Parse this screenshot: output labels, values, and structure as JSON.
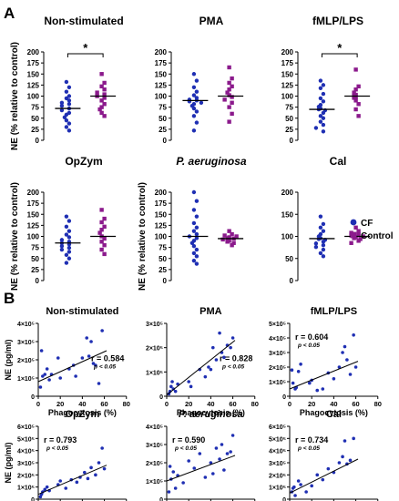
{
  "panel_labels": [
    "A",
    "B"
  ],
  "colors": {
    "cf": "#1f2fb3",
    "control": "#8b1a8c",
    "axis": "#000000",
    "line": "#000000"
  },
  "legend": {
    "cf": "CF",
    "control": "Control"
  },
  "chart_data": [
    {
      "type": "scatter",
      "panel": "A",
      "title": "Non-stimulated",
      "italic": false,
      "ylabel": "NE (% relative to control)",
      "ylim": [
        0,
        200
      ],
      "yticks": [
        "0",
        "25",
        "50",
        "75",
        "100",
        "125",
        "150",
        "175",
        "200"
      ],
      "significance": "*",
      "series": [
        {
          "name": "CF",
          "mean": 72,
          "values": [
            132,
            120,
            110,
            100,
            95,
            90,
            85,
            82,
            78,
            72,
            68,
            62,
            58,
            52,
            45,
            38,
            30,
            22
          ]
        },
        {
          "name": "Control",
          "mean": 100,
          "values": [
            150,
            130,
            122,
            115,
            108,
            104,
            100,
            96,
            90,
            82,
            75,
            70,
            62,
            55
          ]
        }
      ]
    },
    {
      "type": "scatter",
      "panel": "A",
      "title": "PMA",
      "italic": false,
      "ylabel": "",
      "ylim": [
        0,
        200
      ],
      "yticks": [
        "0",
        "25",
        "50",
        "75",
        "100",
        "125",
        "150",
        "175",
        "200"
      ],
      "significance": "",
      "series": [
        {
          "name": "CF",
          "mean": 90,
          "values": [
            150,
            135,
            120,
            110,
            102,
            96,
            92,
            90,
            88,
            85,
            82,
            78,
            72,
            65,
            55,
            40,
            22
          ]
        },
        {
          "name": "Control",
          "mean": 100,
          "values": [
            165,
            140,
            130,
            122,
            115,
            108,
            102,
            98,
            92,
            85,
            75,
            60,
            42
          ]
        }
      ]
    },
    {
      "type": "scatter",
      "panel": "A",
      "title": "fMLP/LPS",
      "italic": false,
      "ylabel": "",
      "ylim": [
        0,
        200
      ],
      "yticks": [
        "0",
        "25",
        "50",
        "75",
        "100",
        "125",
        "150",
        "175",
        "200"
      ],
      "significance": "*",
      "series": [
        {
          "name": "CF",
          "mean": 70,
          "values": [
            135,
            125,
            118,
            105,
            95,
            88,
            80,
            76,
            72,
            70,
            68,
            62,
            55,
            50,
            42,
            35,
            28,
            20
          ]
        },
        {
          "name": "Control",
          "mean": 100,
          "values": [
            160,
            122,
            115,
            108,
            103,
            100,
            98,
            96,
            90,
            82,
            70,
            55
          ]
        }
      ]
    },
    {
      "type": "scatter",
      "panel": "A",
      "title": "OpZym",
      "italic": false,
      "ylabel": "NE (% relative to control)",
      "ylim": [
        0,
        200
      ],
      "yticks": [
        "0",
        "25",
        "50",
        "75",
        "100",
        "125",
        "150",
        "175",
        "200"
      ],
      "significance": "",
      "series": [
        {
          "name": "CF",
          "mean": 85,
          "values": [
            145,
            135,
            122,
            112,
            104,
            98,
            92,
            88,
            85,
            82,
            78,
            74,
            70,
            65,
            58,
            50,
            40
          ]
        },
        {
          "name": "Control",
          "mean": 100,
          "values": [
            160,
            140,
            132,
            122,
            115,
            108,
            100,
            95,
            88,
            80,
            70,
            60
          ]
        }
      ]
    },
    {
      "type": "scatter",
      "panel": "A",
      "title": "P. aeruginosa",
      "italic": true,
      "ylabel": "NE (% relative to control)",
      "ylim": [
        0,
        200
      ],
      "yticks": [
        "0",
        "25",
        "50",
        "75",
        "100",
        "125",
        "150",
        "175",
        "200"
      ],
      "significance": "",
      "series": [
        {
          "name": "CF",
          "mean": 100,
          "values": [
            200,
            180,
            160,
            145,
            130,
            120,
            112,
            105,
            100,
            96,
            90,
            85,
            78,
            70,
            62,
            55,
            45,
            38
          ]
        },
        {
          "name": "Control",
          "mean": 95,
          "values": [
            112,
            105,
            102,
            100,
            98,
            96,
            95,
            93,
            90,
            88,
            85,
            80
          ]
        }
      ]
    },
    {
      "type": "scatter",
      "panel": "A",
      "title": "Cal",
      "italic": false,
      "ylabel": "",
      "ylim": [
        0,
        200
      ],
      "yticks": [
        "0",
        "50",
        "100",
        "150",
        "200"
      ],
      "significance": "",
      "series": [
        {
          "name": "CF",
          "mean": 95,
          "values": [
            145,
            128,
            120,
            112,
            105,
            100,
            96,
            94,
            92,
            88,
            84,
            80,
            76,
            70,
            62,
            55
          ]
        },
        {
          "name": "Control",
          "mean": 100,
          "values": [
            120,
            112,
            108,
            104,
            102,
            100,
            98,
            96,
            94,
            90,
            85
          ]
        }
      ]
    },
    {
      "type": "scatter",
      "panel": "B",
      "title": "Non-stimulated",
      "italic": false,
      "xlabel": "Phagocytosis (%)",
      "ylabel": "NE (pg/ml)",
      "xlim": [
        0,
        80
      ],
      "ylim": [
        0,
        400000
      ],
      "xticks": [
        "0",
        "20",
        "40",
        "60",
        "80"
      ],
      "yticks": [
        "0",
        "1×10⁵",
        "2×10⁵",
        "3×10⁵",
        "4×10⁵"
      ],
      "r": "r = 0.584",
      "p": "p < 0.05",
      "fit": {
        "x": [
          0,
          62
        ],
        "y": [
          80000,
          250000
        ]
      },
      "x": [
        2,
        3,
        4,
        6,
        8,
        10,
        12,
        18,
        20,
        28,
        32,
        34,
        40,
        44,
        46,
        48,
        50,
        52,
        55,
        58
      ],
      "y": [
        50000,
        250000,
        110000,
        120000,
        150000,
        90000,
        120000,
        210000,
        100000,
        150000,
        170000,
        110000,
        210000,
        320000,
        220000,
        300000,
        180000,
        170000,
        70000,
        360000
      ]
    },
    {
      "type": "scatter",
      "panel": "B",
      "title": "PMA",
      "italic": false,
      "xlabel": "Phagocytosis (%)",
      "ylabel": "",
      "xlim": [
        0,
        80
      ],
      "ylim": [
        0,
        300000
      ],
      "xticks": [
        "0",
        "20",
        "40",
        "60",
        "80"
      ],
      "yticks": [
        "0",
        "1×10⁵",
        "2×10⁵",
        "3×10⁵"
      ],
      "r": "r = 0.828",
      "p": "p < 0.05",
      "fit": {
        "x": [
          0,
          62
        ],
        "y": [
          5000,
          230000
        ]
      },
      "x": [
        2,
        3,
        4,
        5,
        6,
        8,
        10,
        20,
        22,
        30,
        35,
        38,
        40,
        42,
        45,
        48,
        50,
        52,
        55,
        58,
        60
      ],
      "y": [
        10000,
        20000,
        40000,
        60000,
        30000,
        20000,
        50000,
        60000,
        40000,
        110000,
        80000,
        120000,
        110000,
        200000,
        150000,
        260000,
        180000,
        160000,
        210000,
        200000,
        240000
      ]
    },
    {
      "type": "scatter",
      "panel": "B",
      "title": "fMLP/LPS",
      "italic": false,
      "xlabel": "Phagocytosis (%)",
      "ylabel": "",
      "xlim": [
        0,
        80
      ],
      "ylim": [
        0,
        500000
      ],
      "xticks": [
        "0",
        "20",
        "40",
        "60",
        "80"
      ],
      "yticks": [
        "0",
        "1×10⁵",
        "2×10⁵",
        "3×10⁵",
        "4×10⁵",
        "5×10⁵"
      ],
      "r": "r = 0.604",
      "p": "p < 0.05",
      "fit": {
        "x": [
          0,
          62
        ],
        "y": [
          50000,
          240000
        ]
      },
      "x": [
        2,
        3,
        5,
        6,
        8,
        10,
        18,
        20,
        25,
        30,
        35,
        40,
        45,
        48,
        50,
        52,
        55,
        58,
        60
      ],
      "y": [
        180000,
        90000,
        50000,
        60000,
        170000,
        220000,
        90000,
        110000,
        40000,
        50000,
        160000,
        120000,
        200000,
        300000,
        340000,
        250000,
        150000,
        420000,
        200000
      ]
    },
    {
      "type": "scatter",
      "panel": "B",
      "title": "OpZym",
      "italic": false,
      "xlabel": "Phagocytosis (%)",
      "ylabel": "NE (pg/ml)",
      "xlim": [
        0,
        80
      ],
      "ylim": [
        0,
        600000
      ],
      "xticks": [
        "0",
        "20",
        "40",
        "60",
        "80"
      ],
      "yticks": [
        "0",
        "1×10⁵",
        "2×10⁵",
        "3×10⁵",
        "4×10⁵",
        "5×10⁵",
        "6×10⁵"
      ],
      "r": "r = 0.793",
      "p": "p < 0.05",
      "fit": {
        "x": [
          0,
          62
        ],
        "y": [
          40000,
          280000
        ]
      },
      "x": [
        2,
        3,
        4,
        6,
        8,
        10,
        18,
        20,
        25,
        30,
        35,
        38,
        42,
        45,
        48,
        52,
        55,
        58,
        60
      ],
      "y": [
        20000,
        40000,
        60000,
        80000,
        100000,
        70000,
        120000,
        150000,
        90000,
        160000,
        140000,
        180000,
        220000,
        170000,
        260000,
        200000,
        300000,
        420000,
        250000
      ]
    },
    {
      "type": "scatter",
      "panel": "B",
      "title": "P. aeruginosa",
      "italic": true,
      "xlabel": "Phagocytosis (%)",
      "ylabel": "",
      "xlim": [
        0,
        80
      ],
      "ylim": [
        0,
        400000
      ],
      "xticks": [
        "0",
        "20",
        "40",
        "60",
        "80"
      ],
      "yticks": [
        "0",
        "1×10⁵",
        "2×10⁵",
        "3×10⁵",
        "4×10⁵"
      ],
      "r": "r = 0.590",
      "p": "p < 0.05",
      "fit": {
        "x": [
          0,
          62
        ],
        "y": [
          100000,
          240000
        ]
      },
      "x": [
        2,
        3,
        4,
        6,
        8,
        10,
        15,
        20,
        25,
        30,
        35,
        40,
        42,
        45,
        48,
        50,
        52,
        55,
        58,
        60
      ],
      "y": [
        40000,
        180000,
        110000,
        150000,
        60000,
        130000,
        90000,
        210000,
        170000,
        250000,
        120000,
        200000,
        140000,
        280000,
        220000,
        300000,
        160000,
        250000,
        260000,
        350000
      ]
    },
    {
      "type": "scatter",
      "panel": "B",
      "title": "Cal",
      "italic": false,
      "xlabel": "Phagocytosis (%)",
      "ylabel": "",
      "xlim": [
        0,
        80
      ],
      "ylim": [
        0,
        600000
      ],
      "xticks": [
        "0",
        "20",
        "40",
        "60",
        "80"
      ],
      "yticks": [
        "0",
        "1×10⁵",
        "2×10⁵",
        "3×10⁵",
        "4×10⁵",
        "5×10⁵",
        "6×10⁵"
      ],
      "r": "r = 0.734",
      "p": "p < 0.05",
      "fit": {
        "x": [
          0,
          62
        ],
        "y": [
          50000,
          330000
        ]
      },
      "x": [
        2,
        3,
        4,
        5,
        8,
        10,
        15,
        20,
        25,
        30,
        35,
        40,
        45,
        48,
        50,
        52,
        55,
        58
      ],
      "y": [
        60000,
        90000,
        100000,
        30000,
        150000,
        120000,
        60000,
        110000,
        200000,
        160000,
        250000,
        220000,
        300000,
        350000,
        480000,
        290000,
        320000,
        500000
      ]
    }
  ]
}
